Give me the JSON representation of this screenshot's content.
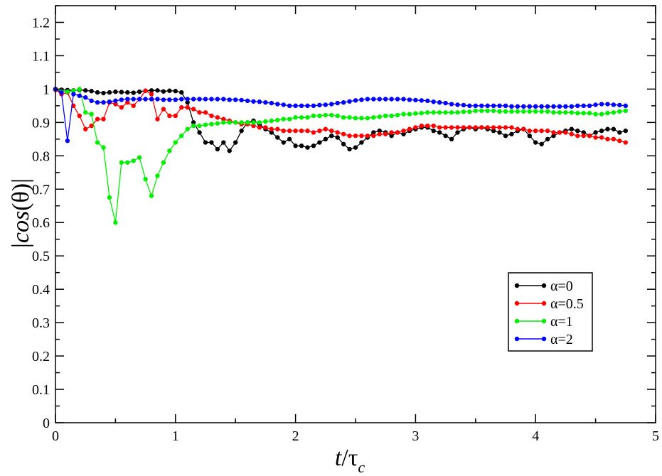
{
  "chart_data": {
    "type": "line",
    "title": "",
    "xlabel": "t/τc",
    "ylabel": "|cos(θ)|",
    "xlim": [
      0,
      5
    ],
    "ylim": [
      0,
      1.25
    ],
    "xticks": [
      0,
      1,
      2,
      3,
      4,
      5
    ],
    "yticks": [
      0,
      0.1,
      0.2,
      0.3,
      0.4,
      0.5,
      0.6,
      0.7,
      0.8,
      0.9,
      1,
      1.1,
      1.2
    ],
    "xtick_labels": [
      "0",
      "1",
      "2",
      "3",
      "4",
      "5"
    ],
    "ytick_labels": [
      "0",
      "0.1",
      "0.2",
      "0.3",
      "0.4",
      "0.5",
      "0.6",
      "0.7",
      "0.8",
      "0.9",
      "1",
      "1.1",
      "1.2"
    ],
    "grid": false,
    "legend_position": "lower-right",
    "marker": "circle",
    "series": [
      {
        "name": "α=0",
        "color": "#000000",
        "x": [
          0.0,
          0.05,
          0.1,
          0.15,
          0.2,
          0.25,
          0.3,
          0.35,
          0.4,
          0.45,
          0.5,
          0.55,
          0.6,
          0.65,
          0.7,
          0.75,
          0.8,
          0.85,
          0.9,
          0.95,
          1.0,
          1.05,
          1.1,
          1.15,
          1.2,
          1.25,
          1.3,
          1.35,
          1.4,
          1.45,
          1.5,
          1.55,
          1.6,
          1.65,
          1.7,
          1.75,
          1.8,
          1.85,
          1.9,
          1.95,
          2.0,
          2.05,
          2.1,
          2.15,
          2.2,
          2.25,
          2.3,
          2.35,
          2.4,
          2.45,
          2.5,
          2.55,
          2.6,
          2.65,
          2.7,
          2.75,
          2.8,
          2.85,
          2.9,
          2.95,
          3.0,
          3.05,
          3.1,
          3.15,
          3.2,
          3.25,
          3.3,
          3.35,
          3.4,
          3.45,
          3.5,
          3.55,
          3.6,
          3.65,
          3.7,
          3.75,
          3.8,
          3.85,
          3.9,
          3.95,
          4.0,
          4.05,
          4.1,
          4.15,
          4.2,
          4.25,
          4.3,
          4.35,
          4.4,
          4.45,
          4.5,
          4.55,
          4.6,
          4.65,
          4.7,
          4.75
        ],
        "values": [
          1.0,
          0.998,
          0.997,
          0.996,
          0.998,
          0.996,
          0.994,
          0.99,
          0.988,
          0.99,
          0.992,
          0.991,
          0.99,
          0.989,
          0.992,
          0.995,
          0.996,
          0.996,
          0.993,
          0.995,
          0.994,
          0.99,
          0.96,
          0.9,
          0.87,
          0.84,
          0.84,
          0.82,
          0.84,
          0.815,
          0.84,
          0.875,
          0.9,
          0.905,
          0.895,
          0.88,
          0.87,
          0.855,
          0.84,
          0.85,
          0.83,
          0.83,
          0.825,
          0.83,
          0.84,
          0.85,
          0.86,
          0.855,
          0.835,
          0.82,
          0.825,
          0.84,
          0.855,
          0.87,
          0.875,
          0.87,
          0.86,
          0.87,
          0.865,
          0.875,
          0.88,
          0.885,
          0.885,
          0.875,
          0.87,
          0.86,
          0.85,
          0.87,
          0.88,
          0.885,
          0.88,
          0.885,
          0.88,
          0.875,
          0.87,
          0.86,
          0.865,
          0.875,
          0.88,
          0.86,
          0.84,
          0.835,
          0.85,
          0.86,
          0.87,
          0.875,
          0.88,
          0.875,
          0.87,
          0.86,
          0.87,
          0.875,
          0.88,
          0.88,
          0.87,
          0.875
        ]
      },
      {
        "name": "α=0.5",
        "color": "#ff0000",
        "x": [
          0.0,
          0.05,
          0.1,
          0.15,
          0.2,
          0.25,
          0.3,
          0.35,
          0.4,
          0.45,
          0.5,
          0.55,
          0.6,
          0.65,
          0.7,
          0.75,
          0.8,
          0.85,
          0.9,
          0.95,
          1.0,
          1.05,
          1.1,
          1.15,
          1.2,
          1.25,
          1.3,
          1.35,
          1.4,
          1.45,
          1.5,
          1.55,
          1.6,
          1.65,
          1.7,
          1.75,
          1.8,
          1.85,
          1.9,
          1.95,
          2.0,
          2.05,
          2.1,
          2.15,
          2.2,
          2.25,
          2.3,
          2.35,
          2.4,
          2.45,
          2.5,
          2.55,
          2.6,
          2.65,
          2.7,
          2.75,
          2.8,
          2.85,
          2.9,
          2.95,
          3.0,
          3.05,
          3.1,
          3.15,
          3.2,
          3.25,
          3.3,
          3.35,
          3.4,
          3.45,
          3.5,
          3.55,
          3.6,
          3.65,
          3.7,
          3.75,
          3.8,
          3.85,
          3.9,
          3.95,
          4.0,
          4.05,
          4.1,
          4.15,
          4.2,
          4.25,
          4.3,
          4.35,
          4.4,
          4.45,
          4.5,
          4.55,
          4.6,
          4.65,
          4.7,
          4.75
        ],
        "values": [
          0.998,
          0.985,
          0.99,
          0.95,
          0.92,
          0.88,
          0.89,
          0.91,
          0.91,
          0.96,
          0.955,
          0.945,
          0.96,
          0.95,
          0.97,
          0.995,
          0.985,
          0.91,
          0.94,
          0.92,
          0.92,
          0.945,
          0.945,
          0.94,
          0.93,
          0.93,
          0.92,
          0.915,
          0.91,
          0.905,
          0.9,
          0.895,
          0.895,
          0.89,
          0.885,
          0.885,
          0.88,
          0.88,
          0.875,
          0.875,
          0.875,
          0.875,
          0.875,
          0.87,
          0.875,
          0.88,
          0.875,
          0.87,
          0.865,
          0.86,
          0.86,
          0.86,
          0.86,
          0.86,
          0.865,
          0.865,
          0.87,
          0.87,
          0.875,
          0.88,
          0.885,
          0.89,
          0.89,
          0.89,
          0.885,
          0.885,
          0.885,
          0.885,
          0.885,
          0.885,
          0.885,
          0.885,
          0.885,
          0.885,
          0.885,
          0.885,
          0.885,
          0.88,
          0.88,
          0.875,
          0.875,
          0.875,
          0.875,
          0.87,
          0.87,
          0.87,
          0.865,
          0.86,
          0.86,
          0.86,
          0.855,
          0.855,
          0.85,
          0.85,
          0.845,
          0.84
        ]
      },
      {
        "name": "α=1",
        "color": "#00ee00",
        "x": [
          0.0,
          0.05,
          0.1,
          0.15,
          0.2,
          0.25,
          0.3,
          0.35,
          0.4,
          0.45,
          0.5,
          0.55,
          0.6,
          0.65,
          0.7,
          0.75,
          0.8,
          0.85,
          0.9,
          0.95,
          1.0,
          1.05,
          1.1,
          1.15,
          1.2,
          1.25,
          1.3,
          1.35,
          1.4,
          1.45,
          1.5,
          1.55,
          1.6,
          1.65,
          1.7,
          1.75,
          1.8,
          1.85,
          1.9,
          1.95,
          2.0,
          2.05,
          2.1,
          2.15,
          2.2,
          2.25,
          2.3,
          2.35,
          2.4,
          2.45,
          2.5,
          2.55,
          2.6,
          2.65,
          2.7,
          2.75,
          2.8,
          2.85,
          2.9,
          2.95,
          3.0,
          3.05,
          3.1,
          3.15,
          3.2,
          3.25,
          3.3,
          3.35,
          3.4,
          3.45,
          3.5,
          3.55,
          3.6,
          3.65,
          3.7,
          3.75,
          3.8,
          3.85,
          3.9,
          3.95,
          4.0,
          4.05,
          4.1,
          4.15,
          4.2,
          4.25,
          4.3,
          4.35,
          4.4,
          4.45,
          4.5,
          4.55,
          4.6,
          4.65,
          4.7,
          4.75
        ],
        "values": [
          1.0,
          0.995,
          0.992,
          0.995,
          1.0,
          0.93,
          0.925,
          0.84,
          0.825,
          0.675,
          0.6,
          0.78,
          0.78,
          0.785,
          0.795,
          0.73,
          0.68,
          0.74,
          0.78,
          0.815,
          0.84,
          0.86,
          0.88,
          0.89,
          0.89,
          0.893,
          0.895,
          0.897,
          0.9,
          0.9,
          0.9,
          0.9,
          0.9,
          0.9,
          0.9,
          0.903,
          0.905,
          0.907,
          0.91,
          0.91,
          0.915,
          0.915,
          0.915,
          0.92,
          0.92,
          0.922,
          0.922,
          0.92,
          0.915,
          0.915,
          0.913,
          0.913,
          0.913,
          0.915,
          0.917,
          0.92,
          0.92,
          0.922,
          0.925,
          0.925,
          0.927,
          0.928,
          0.93,
          0.93,
          0.93,
          0.93,
          0.93,
          0.93,
          0.932,
          0.932,
          0.935,
          0.935,
          0.935,
          0.935,
          0.933,
          0.933,
          0.933,
          0.933,
          0.933,
          0.933,
          0.933,
          0.933,
          0.933,
          0.93,
          0.93,
          0.93,
          0.93,
          0.928,
          0.928,
          0.928,
          0.925,
          0.925,
          0.928,
          0.93,
          0.933,
          0.935
        ]
      },
      {
        "name": "α=2",
        "color": "#0000ff",
        "x": [
          0.0,
          0.05,
          0.1,
          0.15,
          0.2,
          0.25,
          0.3,
          0.35,
          0.4,
          0.45,
          0.5,
          0.55,
          0.6,
          0.65,
          0.7,
          0.75,
          0.8,
          0.85,
          0.9,
          0.95,
          1.0,
          1.05,
          1.1,
          1.15,
          1.2,
          1.25,
          1.3,
          1.35,
          1.4,
          1.45,
          1.5,
          1.55,
          1.6,
          1.65,
          1.7,
          1.75,
          1.8,
          1.85,
          1.9,
          1.95,
          2.0,
          2.05,
          2.1,
          2.15,
          2.2,
          2.25,
          2.3,
          2.35,
          2.4,
          2.45,
          2.5,
          2.55,
          2.6,
          2.65,
          2.7,
          2.75,
          2.8,
          2.85,
          2.9,
          2.95,
          3.0,
          3.05,
          3.1,
          3.15,
          3.2,
          3.25,
          3.3,
          3.35,
          3.4,
          3.45,
          3.5,
          3.55,
          3.6,
          3.65,
          3.7,
          3.75,
          3.8,
          3.85,
          3.9,
          3.95,
          4.0,
          4.05,
          4.1,
          4.15,
          4.2,
          4.25,
          4.3,
          4.35,
          4.4,
          4.45,
          4.5,
          4.55,
          4.6,
          4.65,
          4.7,
          4.75
        ],
        "values": [
          1.0,
          0.99,
          0.845,
          0.985,
          0.98,
          0.975,
          0.965,
          0.96,
          0.96,
          0.962,
          0.965,
          0.968,
          0.97,
          0.97,
          0.97,
          0.97,
          0.97,
          0.97,
          0.968,
          0.968,
          0.968,
          0.97,
          0.97,
          0.97,
          0.97,
          0.97,
          0.97,
          0.97,
          0.97,
          0.968,
          0.968,
          0.967,
          0.965,
          0.963,
          0.962,
          0.96,
          0.958,
          0.955,
          0.953,
          0.95,
          0.95,
          0.95,
          0.95,
          0.95,
          0.952,
          0.953,
          0.955,
          0.958,
          0.96,
          0.963,
          0.966,
          0.968,
          0.97,
          0.97,
          0.97,
          0.97,
          0.97,
          0.97,
          0.97,
          0.968,
          0.967,
          0.966,
          0.965,
          0.962,
          0.96,
          0.958,
          0.955,
          0.953,
          0.952,
          0.95,
          0.95,
          0.95,
          0.95,
          0.95,
          0.95,
          0.95,
          0.948,
          0.948,
          0.948,
          0.948,
          0.948,
          0.948,
          0.948,
          0.948,
          0.948,
          0.948,
          0.948,
          0.95,
          0.95,
          0.95,
          0.953,
          0.955,
          0.955,
          0.953,
          0.952,
          0.95
        ]
      }
    ]
  }
}
